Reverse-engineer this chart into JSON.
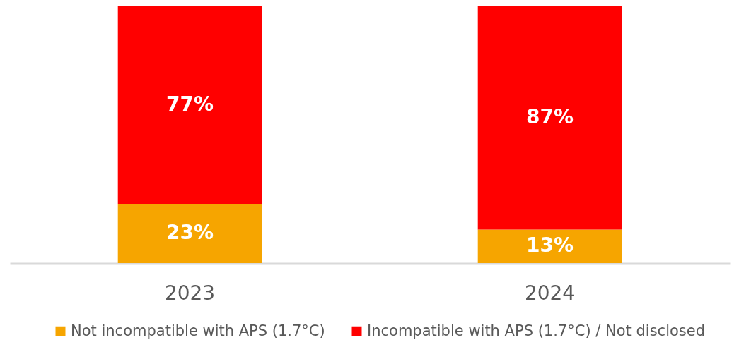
{
  "chart_data": {
    "type": "bar",
    "stacked": true,
    "legend": "bottom",
    "categories": [
      "2023",
      "2024"
    ],
    "series": [
      {
        "name": "Not incompatible with APS (1.7°C)",
        "color": "#f6a500",
        "values": [
          23,
          13
        ],
        "value_labels": [
          "23%",
          "13%"
        ]
      },
      {
        "name": "Incompatible with APS (1.7°C) / Not disclosed",
        "color": "#ff0000",
        "values": [
          77,
          87
        ],
        "value_labels": [
          "77%",
          "87%"
        ]
      }
    ]
  }
}
